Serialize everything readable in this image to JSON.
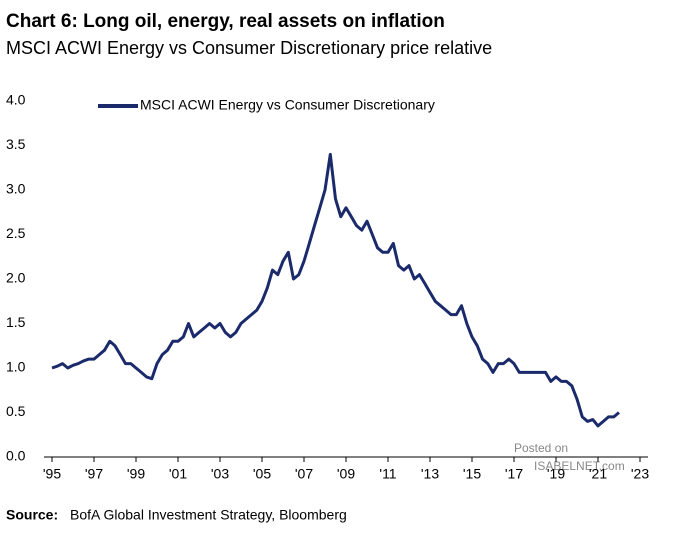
{
  "chart_data": {
    "type": "line",
    "title": "Chart 6: Long oil, energy, real assets on inflation",
    "subtitle": "MSCI ACWI Energy vs Consumer Discretionary price relative",
    "source_label": "Source:",
    "source_text": "BofA Global Investment Strategy, Bloomberg",
    "watermark": [
      "Posted on",
      "ISABELNET.com"
    ],
    "x": [
      1995,
      1995.25,
      1995.5,
      1995.75,
      1996,
      1996.25,
      1996.5,
      1996.75,
      1997,
      1997.25,
      1997.5,
      1997.75,
      1998,
      1998.25,
      1998.5,
      1998.75,
      1999,
      1999.25,
      1999.5,
      1999.75,
      2000,
      2000.25,
      2000.5,
      2000.75,
      2001,
      2001.25,
      2001.5,
      2001.75,
      2002,
      2002.25,
      2002.5,
      2002.75,
      2003,
      2003.25,
      2003.5,
      2003.75,
      2004,
      2004.25,
      2004.5,
      2004.75,
      2005,
      2005.25,
      2005.5,
      2005.75,
      2006,
      2006.25,
      2006.5,
      2006.75,
      2007,
      2007.25,
      2007.5,
      2007.75,
      2008,
      2008.25,
      2008.5,
      2008.75,
      2009,
      2009.25,
      2009.5,
      2009.75,
      2010,
      2010.25,
      2010.5,
      2010.75,
      2011,
      2011.25,
      2011.5,
      2011.75,
      2012,
      2012.25,
      2012.5,
      2012.75,
      2013,
      2013.25,
      2013.5,
      2013.75,
      2014,
      2014.25,
      2014.5,
      2014.75,
      2015,
      2015.25,
      2015.5,
      2015.75,
      2016,
      2016.25,
      2016.5,
      2016.75,
      2017,
      2017.25,
      2017.5,
      2017.75,
      2018,
      2018.25,
      2018.5,
      2018.75,
      2019,
      2019.25,
      2019.5,
      2019.75,
      2020,
      2020.25,
      2020.5,
      2020.75,
      2021,
      2021.25,
      2021.5,
      2021.75,
      2022
    ],
    "series": [
      {
        "name": "MSCI ACWI Energy vs Consumer Discretionary",
        "color": "#1b2a6b",
        "values": [
          1.0,
          1.02,
          1.05,
          1.0,
          1.03,
          1.05,
          1.08,
          1.1,
          1.1,
          1.15,
          1.2,
          1.3,
          1.25,
          1.15,
          1.05,
          1.05,
          1.0,
          0.95,
          0.9,
          0.88,
          1.05,
          1.15,
          1.2,
          1.3,
          1.3,
          1.35,
          1.5,
          1.35,
          1.4,
          1.45,
          1.5,
          1.45,
          1.5,
          1.4,
          1.35,
          1.4,
          1.5,
          1.55,
          1.6,
          1.65,
          1.75,
          1.9,
          2.1,
          2.05,
          2.2,
          2.3,
          2.0,
          2.05,
          2.2,
          2.4,
          2.6,
          2.8,
          3.0,
          3.4,
          2.9,
          2.7,
          2.8,
          2.7,
          2.6,
          2.55,
          2.65,
          2.5,
          2.35,
          2.3,
          2.3,
          2.4,
          2.15,
          2.1,
          2.15,
          2.0,
          2.05,
          1.95,
          1.85,
          1.75,
          1.7,
          1.65,
          1.6,
          1.6,
          1.7,
          1.5,
          1.35,
          1.25,
          1.1,
          1.05,
          0.95,
          1.05,
          1.05,
          1.1,
          1.05,
          0.95,
          0.95,
          0.95,
          0.95,
          0.95,
          0.95,
          0.85,
          0.9,
          0.85,
          0.85,
          0.8,
          0.65,
          0.45,
          0.4,
          0.42,
          0.35,
          0.4,
          0.45,
          0.45,
          0.5
        ]
      }
    ],
    "xlim": [
      1995,
      2023
    ],
    "xticks": [
      {
        "value": 1995,
        "label": "'95"
      },
      {
        "value": 1997,
        "label": "'97"
      },
      {
        "value": 1999,
        "label": "'99"
      },
      {
        "value": 2001,
        "label": "'01"
      },
      {
        "value": 2003,
        "label": "'03"
      },
      {
        "value": 2005,
        "label": "'05"
      },
      {
        "value": 2007,
        "label": "'07"
      },
      {
        "value": 2009,
        "label": "'09"
      },
      {
        "value": 2011,
        "label": "'11"
      },
      {
        "value": 2013,
        "label": "'13"
      },
      {
        "value": 2015,
        "label": "'15"
      },
      {
        "value": 2017,
        "label": "'17"
      },
      {
        "value": 2019,
        "label": "'19"
      },
      {
        "value": 2021,
        "label": "'21"
      },
      {
        "value": 2023,
        "label": "'23"
      }
    ],
    "ylim": [
      0,
      4
    ],
    "yticks": [
      {
        "value": 0,
        "label": "0.0"
      },
      0.5,
      {
        "value": 1,
        "label": "1.0"
      },
      1.5,
      {
        "value": 2,
        "label": "2.0"
      },
      2.5,
      {
        "value": 3,
        "label": "3.0"
      },
      3.5,
      {
        "value": 4,
        "label": "4.0"
      }
    ],
    "grid": false
  }
}
